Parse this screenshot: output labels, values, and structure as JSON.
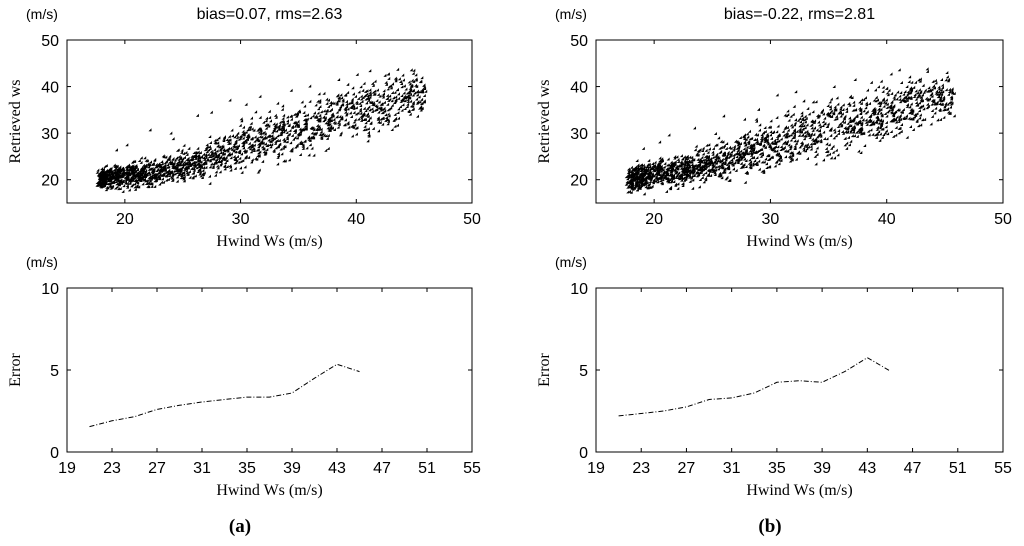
{
  "chart_data": [
    {
      "id": "a-scatter",
      "type": "scatter",
      "title": "bias=0.07, rms=2.63",
      "unit_label": "(m/s)",
      "xlabel": "Hwind Ws (m/s)",
      "ylabel": "Retrieved ws",
      "xlim": [
        15,
        50
      ],
      "ylim": [
        15,
        50
      ],
      "xticks": [
        20,
        30,
        40,
        50
      ],
      "yticks": [
        20,
        30,
        40,
        50
      ],
      "trend": {
        "x": [
          18,
          20,
          22,
          24,
          26,
          28,
          30,
          32,
          34,
          36,
          38,
          40,
          42,
          44,
          46
        ],
        "y": [
          20,
          20.6,
          21.2,
          22,
          23.2,
          24.8,
          26.5,
          28.3,
          29.8,
          31.2,
          32.6,
          34,
          35.4,
          36.8,
          38.2
        ]
      },
      "spread": {
        "x": [
          18,
          22,
          26,
          30,
          34,
          38,
          42,
          46
        ],
        "s": [
          1.4,
          1.8,
          2.2,
          3,
          3.6,
          3.8,
          3.6,
          2.6
        ]
      },
      "outliers": [
        [
          22.3,
          30.4
        ],
        [
          24.1,
          29.7
        ],
        [
          26.4,
          33.5
        ],
        [
          27.6,
          34.2
        ],
        [
          29.2,
          36.8
        ],
        [
          30.6,
          35.9
        ],
        [
          31.8,
          37.6
        ],
        [
          34.5,
          38.9
        ],
        [
          36.1,
          39.8
        ],
        [
          38.6,
          41.2
        ],
        [
          40.2,
          42.3
        ],
        [
          41.3,
          43.1
        ],
        [
          42.6,
          42.1
        ],
        [
          43.7,
          43.4
        ],
        [
          45.1,
          43.2
        ],
        [
          40.8,
          40.4
        ],
        [
          44.2,
          41.1
        ],
        [
          24.3,
          28.5
        ],
        [
          20.3,
          27.2
        ],
        [
          19.4,
          26.1
        ]
      ],
      "marker_count": 1800,
      "seed": 11
    },
    {
      "id": "b-scatter",
      "type": "scatter",
      "title": "bias=-0.22, rms=2.81",
      "unit_label": "(m/s)",
      "xlabel": "Hwind Ws (m/s)",
      "ylabel": "Retrieved ws",
      "xlim": [
        15,
        50
      ],
      "ylim": [
        15,
        50
      ],
      "xticks": [
        20,
        30,
        40,
        50
      ],
      "yticks": [
        20,
        30,
        40,
        50
      ],
      "trend": {
        "x": [
          18,
          20,
          22,
          24,
          26,
          28,
          30,
          32,
          34,
          36,
          38,
          40,
          42,
          44,
          46
        ],
        "y": [
          20,
          20.7,
          21.5,
          22.5,
          23.7,
          25.2,
          26.9,
          28.6,
          30.1,
          31.5,
          32.8,
          34.1,
          35.4,
          36.7,
          38.1
        ]
      },
      "spread": {
        "x": [
          18,
          22,
          26,
          30,
          34,
          38,
          42,
          46
        ],
        "s": [
          1.6,
          2.2,
          2.7,
          3.4,
          3.9,
          3.9,
          3.6,
          2.6
        ]
      },
      "outliers": [
        [
          21.4,
          29.3
        ],
        [
          23.6,
          30.8
        ],
        [
          26.1,
          33.4
        ],
        [
          27.9,
          32.7
        ],
        [
          29.1,
          34.8
        ],
        [
          30.7,
          37.9
        ],
        [
          32.3,
          38.6
        ],
        [
          33.8,
          36.4
        ],
        [
          35.6,
          39.7
        ],
        [
          37.4,
          41.2
        ],
        [
          38.8,
          40.6
        ],
        [
          40.5,
          42.4
        ],
        [
          42.1,
          41.8
        ],
        [
          43.6,
          43.5
        ],
        [
          45.3,
          42.7
        ],
        [
          41.2,
          43.3
        ],
        [
          44.1,
          40.8
        ],
        [
          25.4,
          29.6
        ],
        [
          20.6,
          27.8
        ],
        [
          19.2,
          26.4
        ]
      ],
      "marker_count": 1800,
      "seed": 29
    },
    {
      "id": "a-error",
      "type": "line",
      "unit_label": "(m/s)",
      "xlabel": "Hwind Ws (m/s)",
      "ylabel": "Error",
      "xlim": [
        19,
        55
      ],
      "ylim": [
        0,
        10
      ],
      "xticks": [
        19,
        23,
        27,
        31,
        35,
        39,
        43,
        47,
        51,
        55
      ],
      "yticks": [
        0,
        5,
        10
      ],
      "x": [
        21,
        23,
        25,
        27,
        29,
        31,
        33,
        35,
        37,
        39,
        41,
        43,
        45
      ],
      "y": [
        1.55,
        1.9,
        2.15,
        2.6,
        2.85,
        3.05,
        3.2,
        3.35,
        3.35,
        3.6,
        4.5,
        5.35,
        4.9
      ]
    },
    {
      "id": "b-error",
      "type": "line",
      "unit_label": "(m/s)",
      "xlabel": "Hwind Ws (m/s)",
      "ylabel": "Error",
      "xlim": [
        19,
        55
      ],
      "ylim": [
        0,
        10
      ],
      "xticks": [
        19,
        23,
        27,
        31,
        35,
        39,
        43,
        47,
        51,
        55
      ],
      "yticks": [
        0,
        5,
        10
      ],
      "x": [
        21,
        23,
        25,
        27,
        29,
        31,
        33,
        35,
        37,
        39,
        41,
        43,
        45
      ],
      "y": [
        2.2,
        2.35,
        2.5,
        2.75,
        3.2,
        3.3,
        3.6,
        4.25,
        4.35,
        4.25,
        4.9,
        5.75,
        4.95
      ]
    }
  ],
  "panel_labels": [
    "(a)",
    "(b)"
  ]
}
